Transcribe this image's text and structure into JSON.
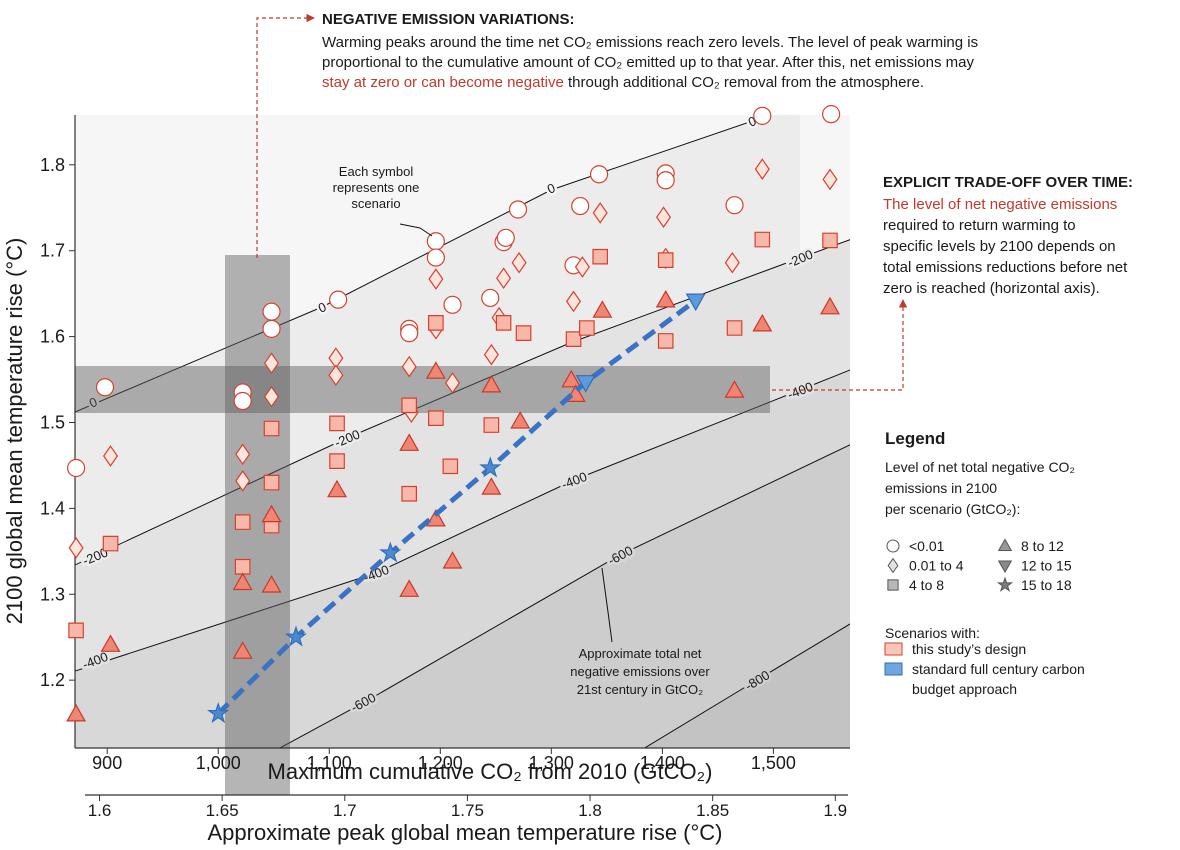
{
  "chart_data": {
    "type": "scatter",
    "x_label": "Maximum cumulative CO₂ from 2010 (GtCO₂)",
    "y_label": "2100 global mean temperature rise (°C)",
    "x2_label": "Approximate peak global mean temperature rise (°C)",
    "xlim": [
      871,
      1569
    ],
    "xticks": [
      900,
      {
        "value": 1000,
        "label": "1,000"
      },
      {
        "value": 1100,
        "label": "1,100"
      },
      {
        "value": 1200,
        "label": "1,200"
      },
      {
        "value": 1300,
        "label": "1,300"
      },
      {
        "value": 1400,
        "label": "1,400"
      },
      {
        "value": 1500,
        "label": "1,500"
      }
    ],
    "ylim": [
      1.121,
      1.858
    ],
    "yticks": [
      1.2,
      1.3,
      1.4,
      1.5,
      1.6,
      1.7,
      1.8
    ],
    "x2lim": [
      1.59,
      1.906
    ],
    "x2ticks": [
      1.6,
      1.65,
      1.7,
      1.75,
      1.8,
      1.85,
      1.9
    ],
    "contours": [
      {
        "level": 0
      },
      {
        "level": -200
      },
      {
        "level": -400
      },
      {
        "level": -600
      },
      {
        "level": -800
      }
    ],
    "series": [
      {
        "name": "<0.01",
        "marker": "circle",
        "color": "#d6412f",
        "fill": "#ffffff",
        "legend_fill": "#ffffff",
        "x": [
          872,
          898,
          1022,
          1022,
          1048,
          1048,
          1108,
          1172,
          1172,
          1196,
          1196,
          1211,
          1245,
          1257,
          1259,
          1270,
          1320,
          1326,
          1343,
          1403,
          1403,
          1465,
          1490,
          1552
        ],
        "values": [
          1.447,
          1.541,
          1.535,
          1.525,
          1.629,
          1.609,
          1.643,
          1.609,
          1.604,
          1.711,
          1.692,
          1.637,
          1.645,
          1.71,
          1.715,
          1.748,
          1.683,
          1.752,
          1.789,
          1.79,
          1.782,
          1.753,
          1.857,
          1.859
        ]
      },
      {
        "name": "0.01 to 4",
        "marker": "diamond",
        "color": "#d6412f",
        "fill": "#fde4dd",
        "legend_fill": "#e2e2e2",
        "x": [
          872,
          903,
          1022,
          1022,
          1048,
          1048,
          1106,
          1106,
          1172,
          1174,
          1196,
          1196,
          1211,
          1246,
          1257,
          1253,
          1271,
          1320,
          1328,
          1344,
          1401,
          1403,
          1463,
          1490,
          1551
        ],
        "values": [
          1.354,
          1.461,
          1.463,
          1.432,
          1.569,
          1.53,
          1.575,
          1.555,
          1.565,
          1.512,
          1.667,
          1.609,
          1.546,
          1.579,
          1.668,
          1.622,
          1.686,
          1.641,
          1.681,
          1.744,
          1.739,
          1.691,
          1.686,
          1.795,
          1.783
        ]
      },
      {
        "name": "4 to 8",
        "marker": "square",
        "color": "#d6412f",
        "fill": "#f7b8a9",
        "legend_fill": "#b8b8b8",
        "x": [
          872,
          903,
          1022,
          1022,
          1048,
          1048,
          1048,
          1107,
          1107,
          1172,
          1172,
          1196,
          1196,
          1209,
          1246,
          1257,
          1275,
          1320,
          1332,
          1344,
          1403,
          1403,
          1465,
          1490,
          1551
        ],
        "values": [
          1.258,
          1.359,
          1.384,
          1.332,
          1.493,
          1.43,
          1.38,
          1.499,
          1.455,
          1.52,
          1.417,
          1.616,
          1.505,
          1.449,
          1.497,
          1.616,
          1.604,
          1.597,
          1.61,
          1.693,
          1.689,
          1.595,
          1.61,
          1.713,
          1.712
        ]
      },
      {
        "name": "8 to 12",
        "marker": "triangle-up",
        "color": "#c9392a",
        "fill": "#ef8673",
        "legend_fill": "#9a9a9a",
        "x": [
          872,
          903,
          1022,
          1022,
          1048,
          1048,
          1107,
          1172,
          1172,
          1196,
          1196,
          1211,
          1246,
          1246,
          1272,
          1318,
          1322,
          1346,
          1403,
          1465,
          1490,
          1551
        ],
        "values": [
          1.16,
          1.241,
          1.313,
          1.233,
          1.392,
          1.31,
          1.421,
          1.475,
          1.305,
          1.559,
          1.387,
          1.338,
          1.543,
          1.424,
          1.501,
          1.549,
          1.532,
          1.63,
          1.642,
          1.537,
          1.614,
          1.634
        ]
      },
      {
        "name": "12 to 15",
        "marker": "triangle-down",
        "color": "#2f6db8",
        "fill": "#5b9bdc",
        "legend_fill": "#8a8a8a",
        "x": [
          1331,
          1430
        ],
        "values": [
          1.547,
          1.642
        ]
      },
      {
        "name": "15 to 18",
        "marker": "star",
        "color": "#2f6db8",
        "fill": "#4a8ad2",
        "legend_fill": "#7a7a7a",
        "x": [
          1000,
          1070,
          1155,
          1245
        ],
        "values": [
          1.161,
          1.25,
          1.348,
          1.447
        ]
      }
    ],
    "budget_line_color": "#3a72c4",
    "annotations": [
      {
        "title": "NEGATIVE EMISSION VARIATIONS:",
        "lines": [
          [
            {
              "text": "Warming peaks around the time net CO₂ emissions reach zero levels. The level of peak warming is"
            }
          ],
          [
            {
              "text": "proportional to the cumulative amount of CO₂ emitted up to that year. After this, net emissions may"
            }
          ],
          [
            {
              "text": "stay at zero or can become negative",
              "color": "#c0392b"
            },
            {
              "text": " through additional CO₂ removal from the atmosphere."
            }
          ]
        ]
      },
      {
        "title": "EXPLICIT TRADE-OFF OVER TIME:",
        "lines": [
          [
            {
              "text": "The level of net negative emissions",
              "color": "#c0392b"
            }
          ],
          [
            {
              "text": "required to return warming to"
            }
          ],
          [
            {
              "text": "specific levels by 2100 depends on"
            }
          ],
          [
            {
              "text": "total emissions reductions before net"
            }
          ],
          [
            {
              "text": "zero is reached (horizontal axis)."
            }
          ]
        ]
      }
    ],
    "callouts": [
      {
        "lines": [
          "Each symbol",
          "represents one",
          "scenario"
        ]
      },
      {
        "lines": [
          "Approximate total net",
          "negative emissions over",
          "21st century in GtCO₂"
        ]
      }
    ],
    "legend": {
      "title": "Legend",
      "subtitle_lines": [
        "Level of net total negative CO₂",
        "emissions in 2100",
        "per scenario (GtCO₂):"
      ],
      "stroke": "#555555",
      "design_title": "Scenarios with:",
      "designs": [
        {
          "lines": [
            "this study’s design"
          ],
          "color": "#f8c6ba",
          "stroke": "#d6412f"
        },
        {
          "lines": [
            "standard full century carbon",
            "budget approach"
          ],
          "color": "#6fa6dc",
          "stroke": "#2f6db8"
        }
      ]
    }
  }
}
